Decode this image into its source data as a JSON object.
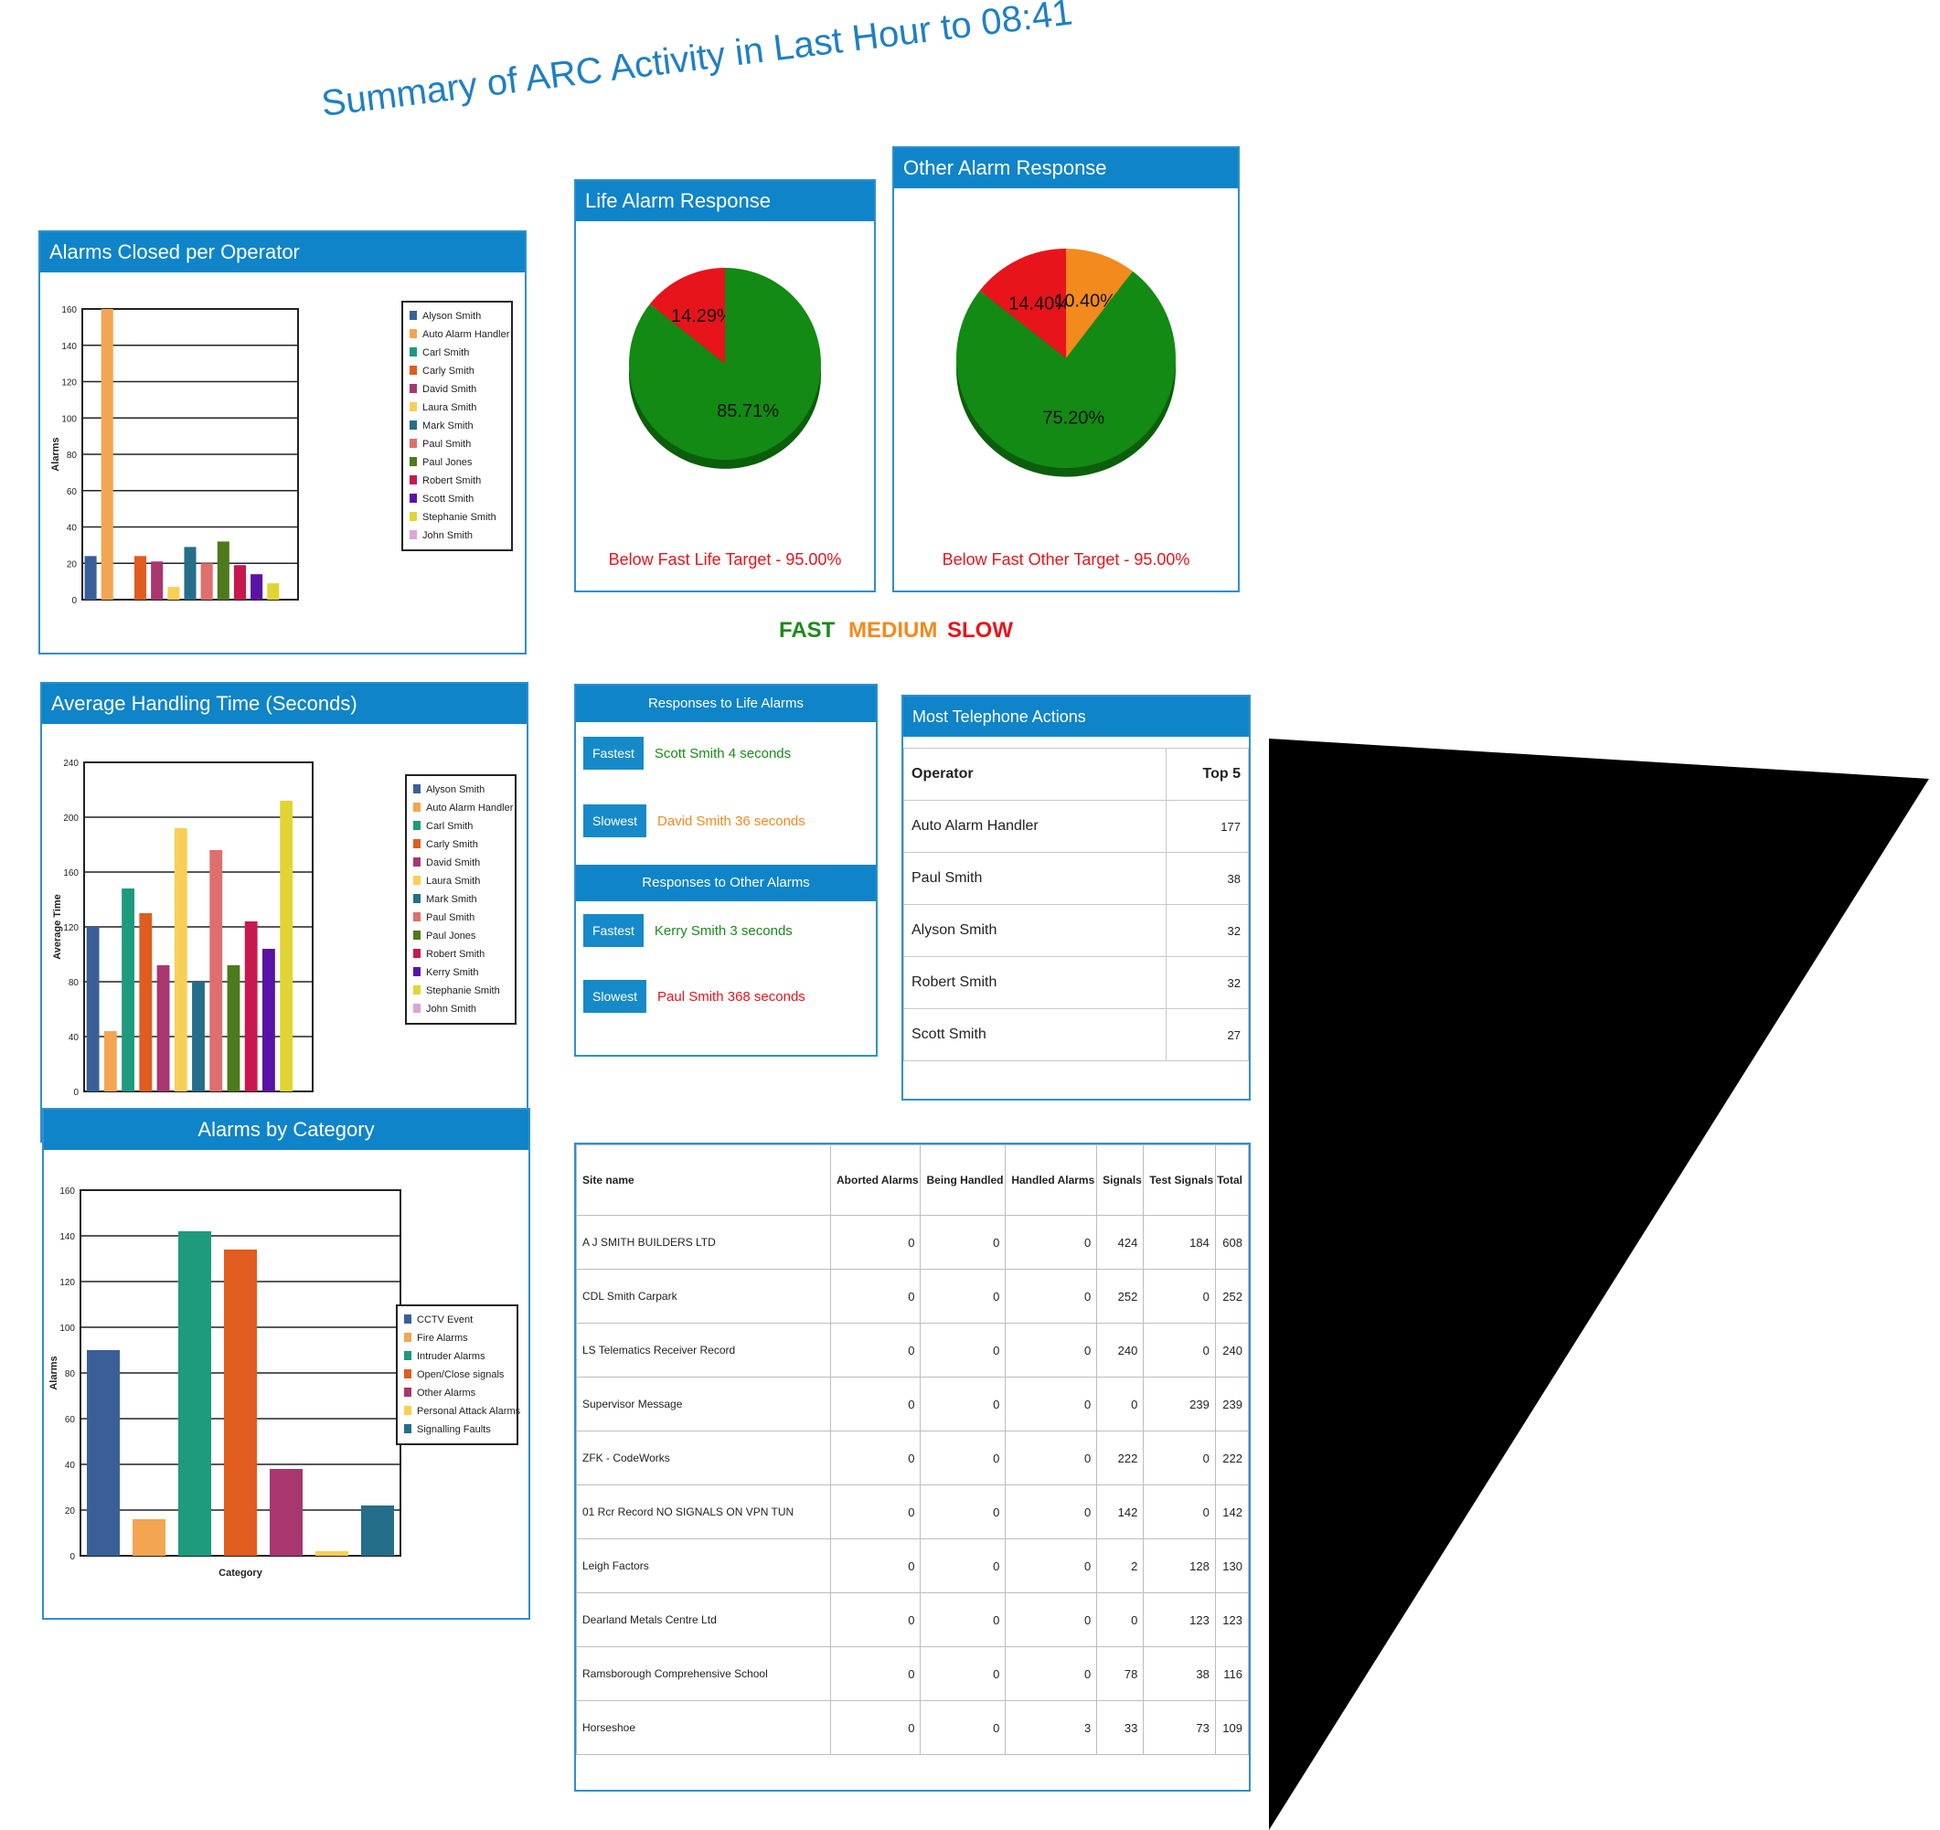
{
  "page_title": "Summary of ARC Activity in Last Hour to 08:41",
  "colors": {
    "header_blue": "#0f84c8",
    "fast": "#1a8a1a",
    "medium": "#f28a1e",
    "slow": "#e8141c"
  },
  "legend_key": {
    "fast": "FAST",
    "medium": "MEDIUM",
    "slow": "SLOW"
  },
  "panels": {
    "alarms_closed": {
      "title": "Alarms Closed per Operator"
    },
    "avg_handling": {
      "title": "Average Handling Time (Seconds)"
    },
    "by_category": {
      "title": "Alarms by Category"
    },
    "life_response": {
      "title": "Life Alarm Response",
      "note": "Below Fast Life Target - 95.00%"
    },
    "other_response": {
      "title": "Other Alarm Response",
      "note": "Below Fast Other Target - 95.00%"
    }
  },
  "responses": {
    "life_title": "Responses to Life Alarms",
    "life_fastest_label": "Fastest",
    "life_fastest_text": "Scott Smith  4 seconds",
    "life_slowest_label": "Slowest",
    "life_slowest_text": "David Smith  36 seconds",
    "other_title": "Responses to Other Alarms",
    "other_fastest_label": "Fastest",
    "other_fastest_text": "Kerry Smith  3 seconds",
    "other_slowest_label": "Slowest",
    "other_slowest_text": "Paul Smith  368 seconds"
  },
  "telephone": {
    "title": "Most Telephone Actions",
    "col_operator": "Operator",
    "col_top5": "Top 5",
    "rows": [
      {
        "operator": "Auto Alarm Handler",
        "value": "177"
      },
      {
        "operator": "Paul Smith",
        "value": "38"
      },
      {
        "operator": "Alyson Smith",
        "value": "32"
      },
      {
        "operator": "Robert Smith",
        "value": "32"
      },
      {
        "operator": "Scott Smith",
        "value": "27"
      }
    ]
  },
  "sites": {
    "headers": [
      "Site name",
      "Aborted Alarms",
      "Being Handled",
      "Handled Alarms",
      "Signals",
      "Test Signals",
      "Total"
    ],
    "rows": [
      [
        "A J SMITH  BUILDERS LTD",
        "0",
        "0",
        "0",
        "424",
        "184",
        "608"
      ],
      [
        "CDL Smith Carpark",
        "0",
        "0",
        "0",
        "252",
        "0",
        "252"
      ],
      [
        "LS Telematics Receiver Record",
        "0",
        "0",
        "0",
        "240",
        "0",
        "240"
      ],
      [
        "Supervisor Message",
        "0",
        "0",
        "0",
        "0",
        "239",
        "239"
      ],
      [
        "ZFK - CodeWorks",
        "0",
        "0",
        "0",
        "222",
        "0",
        "222"
      ],
      [
        "01 Rcr Record NO SIGNALS ON VPN TUN",
        "0",
        "0",
        "0",
        "142",
        "0",
        "142"
      ],
      [
        "Leigh Factors",
        "0",
        "0",
        "0",
        "2",
        "128",
        "130"
      ],
      [
        "Dearland Metals Centre Ltd",
        "0",
        "0",
        "0",
        "0",
        "123",
        "123"
      ],
      [
        "Ramsborough Comprehensive School",
        "0",
        "0",
        "0",
        "78",
        "38",
        "116"
      ],
      [
        "Horseshoe",
        "0",
        "0",
        "3",
        "33",
        "73",
        "109"
      ]
    ]
  },
  "chart_data": [
    {
      "type": "bar",
      "title": "Alarms Closed per Operator",
      "ylabel": "Alarms",
      "xlabel": "",
      "ylim": [
        0,
        160
      ],
      "yticks": [
        0,
        20,
        40,
        60,
        80,
        100,
        120,
        140,
        160
      ],
      "categories": [
        "Alyson Smith",
        "Auto Alarm Handler",
        "Carl Smith",
        "Carly Smith",
        "David Smith",
        "Laura Smith",
        "Mark Smith",
        "Paul Smith",
        "Paul Jones",
        "Robert Smith",
        "Scott Smith",
        "Stephanie Smith",
        "John Smith"
      ],
      "values": [
        24,
        160,
        0,
        24,
        21,
        7,
        29,
        20,
        32,
        19,
        14,
        9,
        0
      ],
      "colors": [
        "#3a5f98",
        "#f3a551",
        "#1e9a7c",
        "#e05c1f",
        "#a8366f",
        "#f8cf56",
        "#246e8a",
        "#de6f6c",
        "#4c7a1c",
        "#c8194f",
        "#5a12a6",
        "#e1d534",
        "#d9a6d6"
      ],
      "legend": "right",
      "grid": true
    },
    {
      "type": "bar",
      "title": "Average Handling Time (Seconds)",
      "ylabel": "Average Time",
      "xlabel": "",
      "ylim": [
        0,
        240
      ],
      "yticks": [
        0,
        40,
        80,
        120,
        160,
        200,
        240
      ],
      "categories": [
        "Alyson Smith",
        "Auto Alarm Handler",
        "Carl Smith",
        "Carly Smith",
        "David Smith",
        "Laura Smith",
        "Mark Smith",
        "Paul Smith",
        "Paul Jones",
        "Robert Smith",
        "Kerry Smith",
        "Stephanie Smith",
        "John Smith"
      ],
      "values": [
        120,
        44,
        148,
        130,
        92,
        192,
        80,
        176,
        92,
        124,
        104,
        212,
        0
      ],
      "colors": [
        "#3a5f98",
        "#f3a551",
        "#1e9a7c",
        "#e05c1f",
        "#a8366f",
        "#f8cf56",
        "#246e8a",
        "#de6f6c",
        "#4c7a1c",
        "#c8194f",
        "#5a12a6",
        "#e1d534",
        "#d9a6d6"
      ],
      "legend": "right",
      "grid": true
    },
    {
      "type": "bar",
      "title": "Alarms by Category",
      "ylabel": "Alarms",
      "xlabel": "Category",
      "ylim": [
        0,
        160
      ],
      "yticks": [
        0,
        20,
        40,
        60,
        80,
        100,
        120,
        140,
        160
      ],
      "categories": [
        "CCTV Event",
        "Fire Alarms",
        "Intruder Alarms",
        "Open/Close signals",
        "Other Alarms",
        "Personal Attack Alarms",
        "Signalling Faults"
      ],
      "values": [
        90,
        16,
        142,
        134,
        38,
        2,
        22
      ],
      "colors": [
        "#3a5f98",
        "#f3a551",
        "#1e9a7c",
        "#e05c1f",
        "#a8366f",
        "#f8cf56",
        "#246e8a"
      ],
      "legend": "right",
      "grid": true
    },
    {
      "type": "pie",
      "title": "Life Alarm Response",
      "slices": [
        {
          "label": "14.29%",
          "value": 14.29,
          "color": "#e8141c"
        },
        {
          "label": "85.71%",
          "value": 85.71,
          "color": "#138a13"
        }
      ]
    },
    {
      "type": "pie",
      "title": "Other Alarm Response",
      "slices": [
        {
          "label": "14.40%",
          "value": 14.4,
          "color": "#e8141c"
        },
        {
          "label": "10.40%",
          "value": 10.4,
          "color": "#f28a1e"
        },
        {
          "label": "75.20%",
          "value": 75.2,
          "color": "#138a13"
        }
      ]
    }
  ]
}
